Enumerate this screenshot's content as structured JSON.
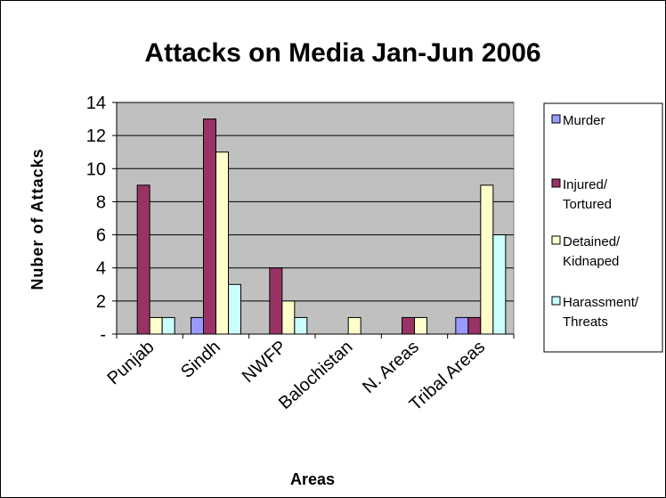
{
  "chart_data": {
    "type": "bar",
    "title": "Attacks on Media Jan-Jun 2006",
    "xlabel": "Areas",
    "ylabel": "Nuber of Attacks",
    "categories": [
      "Punjab",
      "Sindh",
      "NWFP",
      "Balochistan",
      "N. Areas",
      "Tribal Areas"
    ],
    "ylim": [
      0,
      14
    ],
    "yticks": [
      "-",
      "2",
      "4",
      "6",
      "8",
      "10",
      "12",
      "14"
    ],
    "grid": true,
    "legend_position": "right",
    "plot_background": "#c0c0c0",
    "series": [
      {
        "name": "Murder",
        "lines": [
          "Murder"
        ],
        "color": "#9999ff",
        "values": [
          0,
          1,
          0,
          0,
          0,
          1
        ]
      },
      {
        "name": "Injured/ Tortured",
        "lines": [
          "Injured/",
          "Tortured"
        ],
        "color": "#993366",
        "values": [
          9,
          13,
          4,
          0,
          1,
          1
        ]
      },
      {
        "name": "Detained/ Kidnaped",
        "lines": [
          "Detained/",
          "Kidnaped"
        ],
        "color": "#ffffcc",
        "values": [
          1,
          11,
          2,
          1,
          1,
          9
        ]
      },
      {
        "name": "Harassment/ Threats",
        "lines": [
          "Harassment/",
          "Threats"
        ],
        "color": "#ccffff",
        "values": [
          1,
          3,
          1,
          0,
          0,
          6
        ]
      }
    ]
  }
}
